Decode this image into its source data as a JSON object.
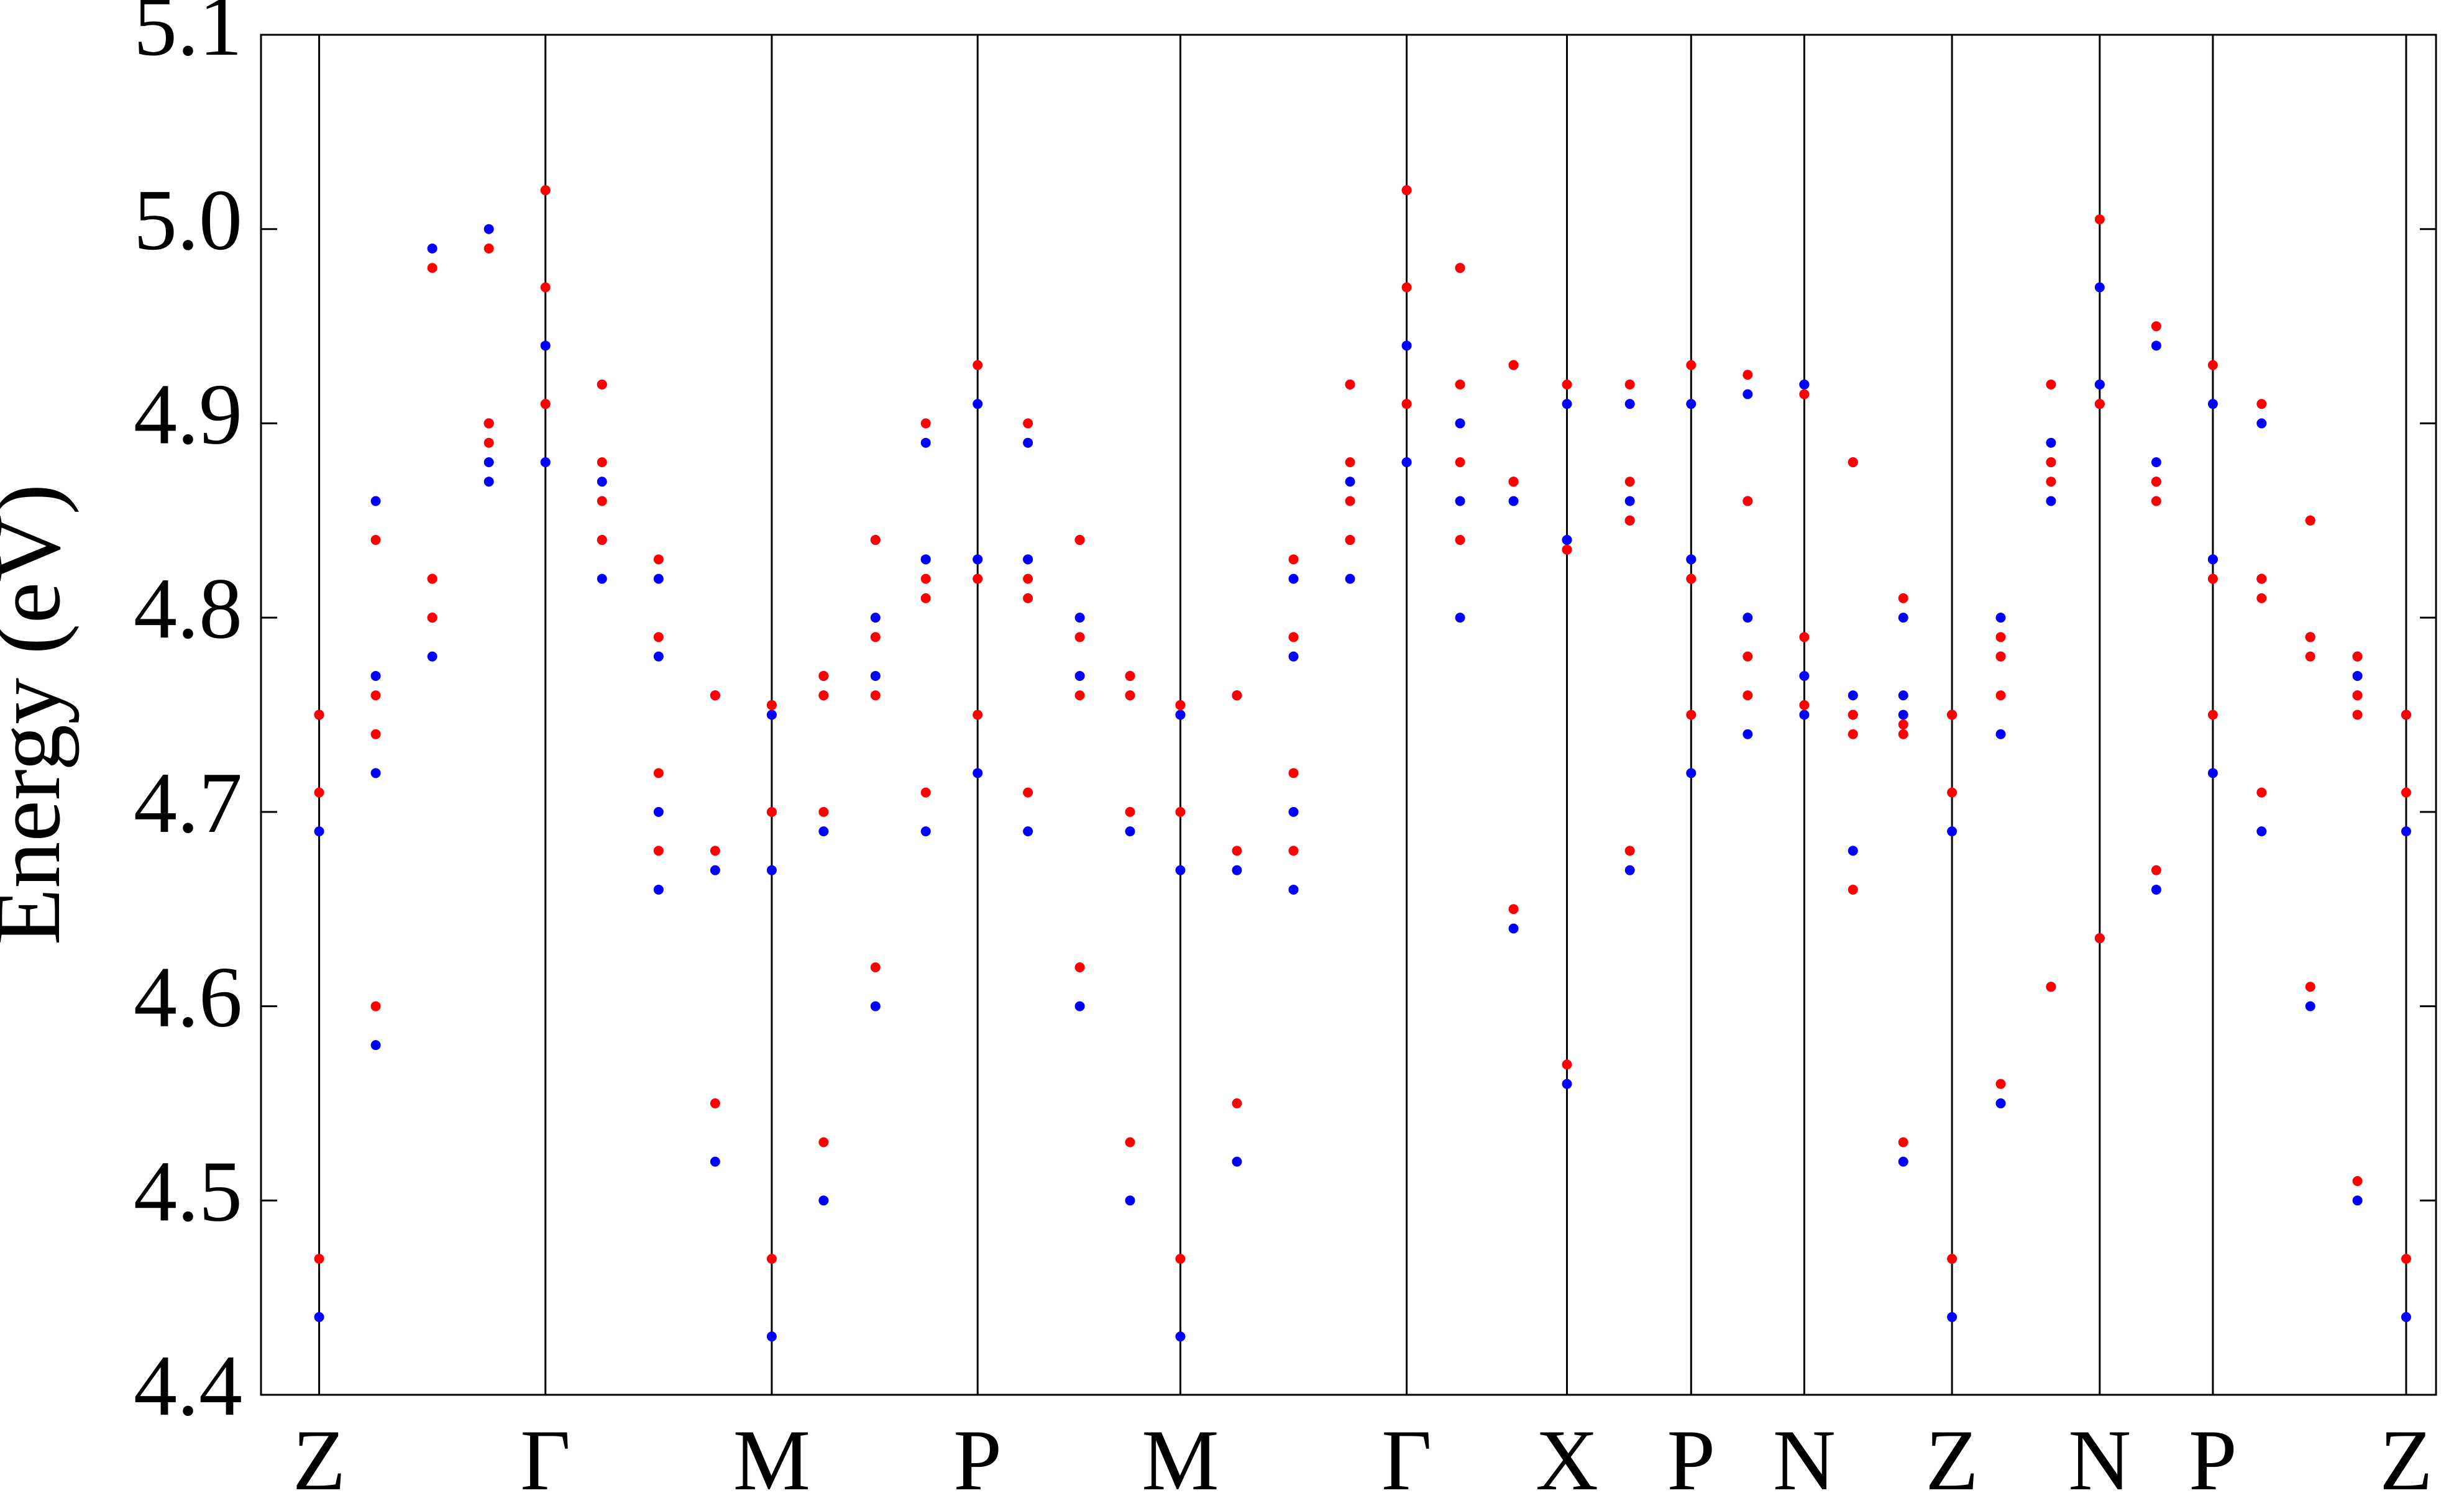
{
  "chart_data": {
    "type": "scatter",
    "ylabel": "Energy (eV)",
    "xlim": [
      -0.37,
      13.47
    ],
    "ylim": [
      4.4,
      5.1
    ],
    "yticks": [
      4.4,
      4.5,
      4.6,
      4.7,
      4.8,
      4.9,
      {
        "value": 5,
        "label": "5.0"
      },
      5.1
    ],
    "xticks": [
      {
        "value": 0,
        "label": "Z"
      },
      {
        "value": 1.44,
        "label": "Γ"
      },
      {
        "value": 2.88,
        "label": "M"
      },
      {
        "value": 4.19,
        "label": "P"
      },
      {
        "value": 5.48,
        "label": "M"
      },
      {
        "value": 6.92,
        "label": "Γ"
      },
      {
        "value": 7.94,
        "label": "X"
      },
      {
        "value": 8.73,
        "label": "P"
      },
      {
        "value": 9.45,
        "label": "N"
      },
      {
        "value": 10.39,
        "label": "Z"
      },
      {
        "value": 11.33,
        "label": "N"
      },
      {
        "value": 12.05,
        "label": "P"
      },
      {
        "value": 13.28,
        "label": "Z"
      }
    ],
    "x": [
      0,
      0.36,
      0.72,
      1.08,
      1.44,
      1.8,
      2.16,
      2.52,
      2.88,
      3.21,
      3.54,
      3.86,
      4.19,
      4.51,
      4.84,
      5.16,
      5.48,
      5.84,
      6.2,
      6.56,
      6.92,
      7.26,
      7.6,
      7.94,
      8.34,
      8.73,
      9.09,
      9.45,
      9.76,
      10.08,
      10.39,
      10.7,
      11.02,
      11.33,
      11.69,
      12.05,
      12.36,
      12.67,
      12.97,
      13.28
    ],
    "series": [
      {
        "color": "#0000ff",
        "values": [
          4.75,
          4.86,
          4.99,
          5.0,
          5.02,
          4.92,
          4.82,
          4.76,
          4.75,
          4.77,
          4.84,
          4.89,
          4.91,
          4.89,
          4.84,
          4.77,
          4.75,
          4.76,
          4.82,
          4.92,
          5.02,
          4.98,
          4.93,
          4.91,
          4.91,
          4.91,
          4.915,
          4.92,
          4.88,
          4.8,
          4.75,
          4.8,
          4.89,
          4.97,
          4.94,
          4.91,
          4.9,
          4.85,
          4.78,
          4.75
        ]
      },
      {
        "color": "#0000ff",
        "values": [
          4.75,
          4.77,
          4.82,
          4.9,
          4.94,
          4.87,
          4.78,
          4.76,
          4.75,
          4.76,
          4.8,
          4.83,
          4.83,
          4.83,
          4.8,
          4.76,
          4.75,
          4.76,
          4.78,
          4.87,
          4.94,
          4.9,
          4.87,
          4.84,
          4.86,
          4.83,
          4.86,
          4.92,
          4.76,
          4.76,
          4.75,
          4.78,
          4.88,
          4.92,
          4.88,
          4.83,
          4.82,
          4.79,
          4.77,
          4.75
        ]
      },
      {
        "color": "#0000ff",
        "values": [
          4.69,
          4.72,
          4.8,
          4.88,
          4.88,
          4.84,
          4.7,
          4.67,
          4.67,
          4.69,
          4.77,
          4.83,
          4.83,
          4.83,
          4.77,
          4.69,
          4.67,
          4.67,
          4.7,
          4.84,
          4.88,
          4.86,
          4.86,
          4.84,
          4.85,
          4.83,
          4.8,
          4.77,
          4.75,
          4.75,
          4.69,
          4.74,
          4.86,
          4.92,
          4.87,
          4.83,
          4.82,
          4.79,
          4.76,
          4.69
        ]
      },
      {
        "color": "#0000ff",
        "values": [
          4.44,
          4.58,
          4.78,
          4.87,
          4.88,
          4.82,
          4.66,
          4.52,
          4.43,
          4.5,
          4.6,
          4.69,
          4.72,
          4.69,
          4.6,
          4.5,
          4.43,
          4.52,
          4.66,
          4.82,
          4.88,
          4.8,
          4.64,
          4.56,
          4.67,
          4.72,
          4.74,
          4.75,
          4.68,
          4.52,
          4.44,
          4.55,
          4.61,
          4.635,
          4.66,
          4.72,
          4.69,
          4.6,
          4.5,
          4.44
        ]
      },
      {
        "color": "#ff0000",
        "values": [
          4.75,
          4.84,
          4.98,
          4.99,
          5.02,
          4.92,
          4.83,
          4.76,
          4.755,
          4.77,
          4.84,
          4.9,
          4.93,
          4.9,
          4.84,
          4.77,
          4.755,
          4.76,
          4.83,
          4.92,
          5.02,
          4.98,
          4.93,
          4.92,
          4.92,
          4.93,
          4.925,
          4.915,
          4.88,
          4.81,
          4.75,
          4.79,
          4.92,
          5.005,
          4.95,
          4.93,
          4.91,
          4.85,
          4.78,
          4.75
        ]
      },
      {
        "color": "#ff0000",
        "values": [
          4.75,
          4.76,
          4.8,
          4.9,
          4.97,
          4.88,
          4.79,
          4.76,
          4.755,
          4.76,
          4.79,
          4.82,
          4.82,
          4.82,
          4.79,
          4.76,
          4.755,
          4.76,
          4.79,
          4.88,
          4.97,
          4.92,
          4.87,
          4.835,
          4.87,
          4.82,
          4.86,
          4.915,
          4.75,
          4.745,
          4.75,
          4.78,
          4.88,
          4.91,
          4.87,
          4.82,
          4.82,
          4.79,
          4.76,
          4.75
        ]
      },
      {
        "color": "#ff0000",
        "values": [
          4.71,
          4.74,
          4.82,
          4.9,
          4.91,
          4.86,
          4.72,
          4.68,
          4.7,
          4.7,
          4.76,
          4.81,
          4.82,
          4.81,
          4.76,
          4.7,
          4.7,
          4.68,
          4.72,
          4.86,
          4.91,
          4.88,
          4.87,
          4.835,
          4.85,
          4.82,
          4.78,
          4.79,
          4.74,
          4.74,
          4.71,
          4.76,
          4.87,
          4.91,
          4.86,
          4.82,
          4.81,
          4.78,
          4.75,
          4.71
        ]
      },
      {
        "color": "#ff0000",
        "values": [
          4.47,
          4.6,
          4.8,
          4.89,
          4.91,
          4.84,
          4.68,
          4.55,
          4.47,
          4.53,
          4.62,
          4.71,
          4.75,
          4.71,
          4.62,
          4.53,
          4.47,
          4.55,
          4.68,
          4.84,
          4.91,
          4.84,
          4.65,
          4.57,
          4.68,
          4.75,
          4.76,
          4.755,
          4.66,
          4.53,
          4.47,
          4.56,
          4.61,
          4.635,
          4.67,
          4.75,
          4.71,
          4.61,
          4.51,
          4.47
        ]
      }
    ]
  }
}
